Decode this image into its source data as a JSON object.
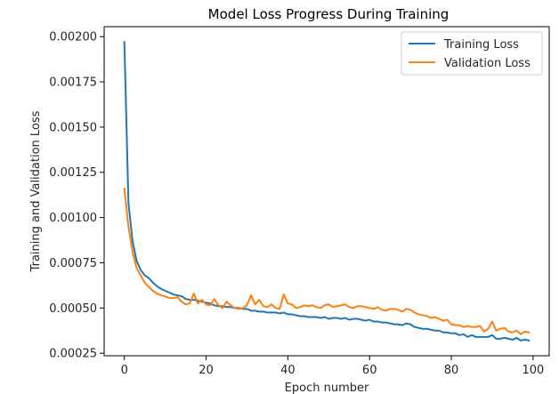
{
  "chart_data": {
    "type": "line",
    "title": "Model Loss Progress During Training",
    "xlabel": "Epoch number",
    "ylabel": "Training and Validation Loss",
    "xlim": [
      -4.95,
      103.95
    ],
    "ylim": [
      0.000236,
      0.002055
    ],
    "xticks": [
      0,
      20,
      40,
      60,
      80,
      100
    ],
    "xtick_labels": [
      "0",
      "20",
      "40",
      "60",
      "80",
      "100"
    ],
    "yticks": [
      0.00025,
      0.0005,
      0.00075,
      0.001,
      0.00125,
      0.0015,
      0.00175,
      0.002
    ],
    "ytick_labels": [
      "0.00025",
      "0.00050",
      "0.00075",
      "0.00100",
      "0.00125",
      "0.00150",
      "0.00175",
      "0.00200"
    ],
    "grid": false,
    "legend_position": "upper-right",
    "series": [
      {
        "name": "Training Loss",
        "color": "#1f77b4",
        "x": [
          0,
          1,
          2,
          3,
          4,
          5,
          6,
          7,
          8,
          9,
          10,
          11,
          12,
          13,
          14,
          15,
          16,
          17,
          18,
          19,
          20,
          21,
          22,
          23,
          24,
          25,
          26,
          27,
          28,
          29,
          30,
          31,
          32,
          33,
          34,
          35,
          36,
          37,
          38,
          39,
          40,
          41,
          42,
          43,
          44,
          45,
          46,
          47,
          48,
          49,
          50,
          51,
          52,
          53,
          54,
          55,
          56,
          57,
          58,
          59,
          60,
          61,
          62,
          63,
          64,
          65,
          66,
          67,
          68,
          69,
          70,
          71,
          72,
          73,
          74,
          75,
          76,
          77,
          78,
          79,
          80,
          81,
          82,
          83,
          84,
          85,
          86,
          87,
          88,
          89,
          90,
          91,
          92,
          93,
          94,
          95,
          96,
          97,
          98,
          99
        ],
        "y": [
          0.00197,
          0.00108,
          0.00087,
          0.00076,
          0.00071,
          0.00068,
          0.000665,
          0.00064,
          0.00062,
          0.000605,
          0.000595,
          0.000585,
          0.000575,
          0.00057,
          0.000565,
          0.00055,
          0.000545,
          0.000545,
          0.00054,
          0.000535,
          0.00053,
          0.000525,
          0.000515,
          0.00051,
          0.00051,
          0.000505,
          0.000505,
          0.0005,
          0.0005,
          0.000495,
          0.000495,
          0.000485,
          0.000485,
          0.00048,
          0.00048,
          0.000475,
          0.000475,
          0.000475,
          0.00047,
          0.000475,
          0.000465,
          0.000465,
          0.00046,
          0.000455,
          0.000455,
          0.00045,
          0.00045,
          0.00045,
          0.000445,
          0.00045,
          0.00044,
          0.000445,
          0.000445,
          0.00044,
          0.000445,
          0.000435,
          0.00044,
          0.00044,
          0.000435,
          0.00043,
          0.000435,
          0.000425,
          0.000425,
          0.00042,
          0.00042,
          0.000415,
          0.00041,
          0.00041,
          0.000405,
          0.000415,
          0.00041,
          0.000395,
          0.00039,
          0.000385,
          0.000385,
          0.00038,
          0.000375,
          0.000375,
          0.000365,
          0.000365,
          0.00036,
          0.00036,
          0.00035,
          0.000355,
          0.00034,
          0.00035,
          0.00034,
          0.00034,
          0.00034,
          0.00034,
          0.00035,
          0.00033,
          0.00033,
          0.000335,
          0.00033,
          0.000325,
          0.000335,
          0.00032,
          0.000325,
          0.00032
        ]
      },
      {
        "name": "Validation Loss",
        "color": "#ff7f0e",
        "x": [
          0,
          1,
          2,
          3,
          4,
          5,
          6,
          7,
          8,
          9,
          10,
          11,
          12,
          13,
          14,
          15,
          16,
          17,
          18,
          19,
          20,
          21,
          22,
          23,
          24,
          25,
          26,
          27,
          28,
          29,
          30,
          31,
          32,
          33,
          34,
          35,
          36,
          37,
          38,
          39,
          40,
          41,
          42,
          43,
          44,
          45,
          46,
          47,
          48,
          49,
          50,
          51,
          52,
          53,
          54,
          55,
          56,
          57,
          58,
          59,
          60,
          61,
          62,
          63,
          64,
          65,
          66,
          67,
          68,
          69,
          70,
          71,
          72,
          73,
          74,
          75,
          76,
          77,
          78,
          79,
          80,
          81,
          82,
          83,
          84,
          85,
          86,
          87,
          88,
          89,
          90,
          91,
          92,
          93,
          94,
          95,
          96,
          97,
          98,
          99
        ],
        "y": [
          0.00116,
          0.00095,
          0.00081,
          0.00072,
          0.00068,
          0.00064,
          0.000615,
          0.000595,
          0.00058,
          0.00057,
          0.000565,
          0.000555,
          0.000555,
          0.00056,
          0.000535,
          0.00052,
          0.000525,
          0.00058,
          0.000525,
          0.000545,
          0.00052,
          0.000515,
          0.00055,
          0.000515,
          0.0005,
          0.000535,
          0.000515,
          0.0005,
          0.000495,
          0.0005,
          0.000515,
          0.00057,
          0.00052,
          0.000545,
          0.00051,
          0.000505,
          0.00052,
          0.0005,
          0.000495,
          0.000575,
          0.000525,
          0.00052,
          0.0005,
          0.000505,
          0.000515,
          0.00051,
          0.000515,
          0.000505,
          0.0005,
          0.000515,
          0.00052,
          0.000505,
          0.00051,
          0.000515,
          0.00052,
          0.000505,
          0.0005,
          0.00051,
          0.00051,
          0.000505,
          0.0005,
          0.000495,
          0.000505,
          0.00049,
          0.000485,
          0.000495,
          0.000495,
          0.00049,
          0.00048,
          0.000495,
          0.00049,
          0.000475,
          0.000465,
          0.00046,
          0.000455,
          0.000445,
          0.00045,
          0.00044,
          0.00043,
          0.000435,
          0.00041,
          0.000405,
          0.000405,
          0.000395,
          0.0004,
          0.000395,
          0.000395,
          0.0004,
          0.00037,
          0.000385,
          0.000425,
          0.000375,
          0.000385,
          0.00039,
          0.00037,
          0.000365,
          0.000375,
          0.000355,
          0.00037,
          0.000365
        ]
      }
    ]
  }
}
